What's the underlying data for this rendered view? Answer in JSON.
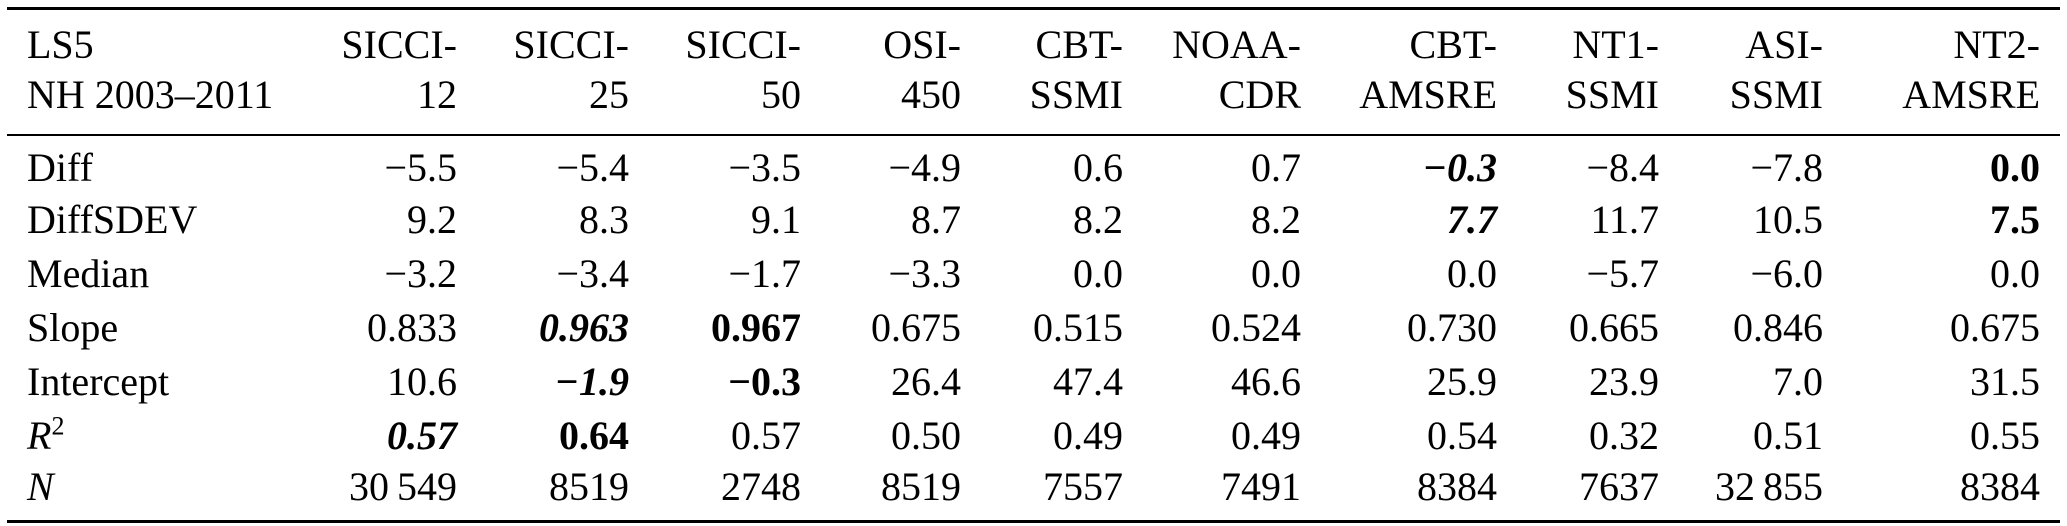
{
  "meta": {
    "background_color": "#ffffff",
    "text_color": "#000000",
    "rule_color": "#000000"
  },
  "table": {
    "stub": {
      "line1": "LS5",
      "line2": "NH 2003–2011"
    },
    "columns": [
      {
        "line1": "SICCI-",
        "line2": "12"
      },
      {
        "line1": "SICCI-",
        "line2": "25"
      },
      {
        "line1": "SICCI-",
        "line2": "50"
      },
      {
        "line1": "OSI-",
        "line2": "450"
      },
      {
        "line1": "CBT-",
        "line2": "SSMI"
      },
      {
        "line1": "NOAA-",
        "line2": "CDR"
      },
      {
        "line1": "CBT-",
        "line2": "AMSRE"
      },
      {
        "line1": "NT1-",
        "line2": "SSMI"
      },
      {
        "line1": "ASI-",
        "line2": "SSMI"
      },
      {
        "line1": "NT2-",
        "line2": "AMSRE"
      }
    ],
    "rows": [
      {
        "label": "Diff",
        "label_italic": false,
        "cells": [
          "−5.5",
          "−5.4",
          "−3.5",
          "−4.9",
          "0.6",
          "0.7",
          "−0.3",
          "−8.4",
          "−7.8",
          "0.0"
        ],
        "styles": [
          "",
          "",
          "",
          "",
          "",
          "",
          "bold-italic",
          "",
          "",
          "bold"
        ]
      },
      {
        "label": "DiffSDEV",
        "label_italic": false,
        "cells": [
          "9.2",
          "8.3",
          "9.1",
          "8.7",
          "8.2",
          "8.2",
          "7.7",
          "11.7",
          "10.5",
          "7.5"
        ],
        "styles": [
          "",
          "",
          "",
          "",
          "",
          "",
          "bold-italic",
          "",
          "",
          "bold"
        ]
      },
      {
        "label": "Median",
        "label_italic": false,
        "cells": [
          "−3.2",
          "−3.4",
          "−1.7",
          "−3.3",
          "0.0",
          "0.0",
          "0.0",
          "−5.7",
          "−6.0",
          "0.0"
        ],
        "styles": [
          "",
          "",
          "",
          "",
          "",
          "",
          "",
          "",
          "",
          ""
        ]
      },
      {
        "label": "Slope",
        "label_italic": false,
        "cells": [
          "0.833",
          "0.963",
          "0.967",
          "0.675",
          "0.515",
          "0.524",
          "0.730",
          "0.665",
          "0.846",
          "0.675"
        ],
        "styles": [
          "",
          "bold-italic",
          "bold",
          "",
          "",
          "",
          "",
          "",
          "",
          ""
        ]
      },
      {
        "label": "Intercept",
        "label_italic": false,
        "cells": [
          "10.6",
          "−1.9",
          "−0.3",
          "26.4",
          "47.4",
          "46.6",
          "25.9",
          "23.9",
          "7.0",
          "31.5"
        ],
        "styles": [
          "",
          "bold-italic",
          "bold",
          "",
          "",
          "",
          "",
          "",
          "",
          ""
        ]
      },
      {
        "label": "R",
        "label_sup": "2",
        "label_italic": true,
        "cells": [
          "0.57",
          "0.64",
          "0.57",
          "0.50",
          "0.49",
          "0.49",
          "0.54",
          "0.32",
          "0.51",
          "0.55"
        ],
        "styles": [
          "bold-italic",
          "bold",
          "",
          "",
          "",
          "",
          "",
          "",
          "",
          ""
        ]
      },
      {
        "label": "N",
        "label_italic": true,
        "cells": [
          "30 549",
          "8519",
          "2748",
          "8519",
          "7557",
          "7491",
          "8384",
          "7637",
          "32 855",
          "8384"
        ],
        "styles": [
          "",
          "",
          "",
          "",
          "",
          "",
          "",
          "",
          "",
          ""
        ]
      }
    ]
  }
}
